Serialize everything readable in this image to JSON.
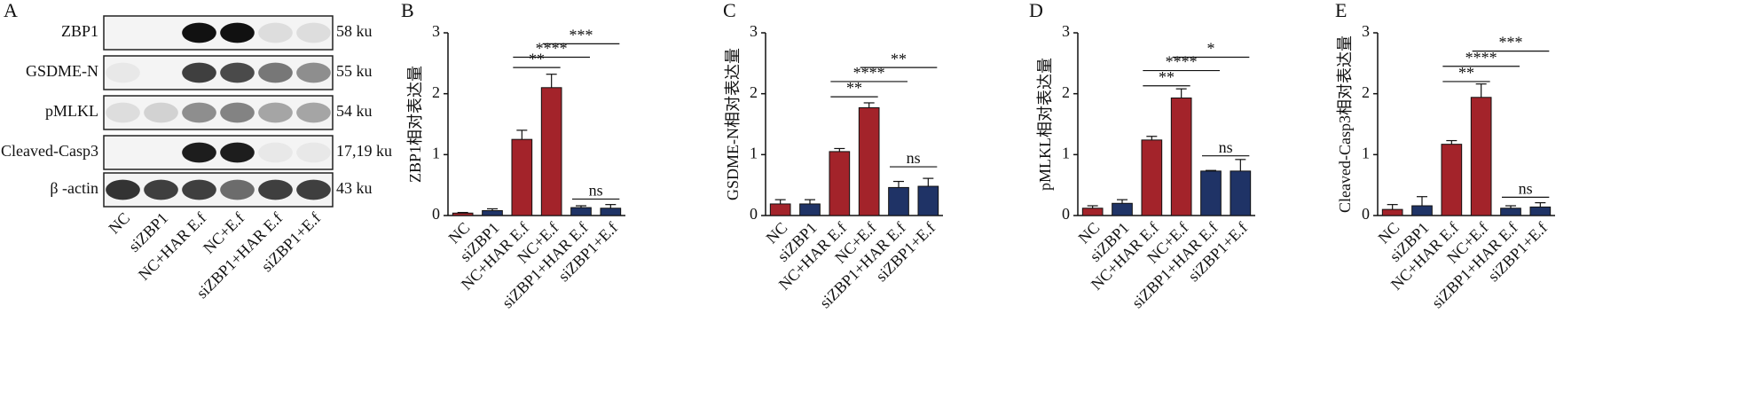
{
  "blot": {
    "panel": "A",
    "lanes": [
      "NC",
      "siZBP1",
      "NC+HAR E.f",
      "NC+E.f",
      "siZBP1+HAR E.f",
      "siZBP1+E.f"
    ],
    "rows": [
      {
        "name": "ZBP1",
        "size": "58 ku",
        "bands": [
          0,
          0,
          1,
          1,
          0.1,
          0.1
        ]
      },
      {
        "name": "GSDME-N",
        "size": "55 ku",
        "bands": [
          0.05,
          0,
          0.8,
          0.75,
          0.55,
          0.45
        ]
      },
      {
        "name": "pMLKL",
        "size": "54 ku",
        "bands": [
          0.1,
          0.15,
          0.45,
          0.5,
          0.35,
          0.35
        ]
      },
      {
        "name": "Cleaved-Casp3",
        "size": "17,19 ku",
        "bands": [
          0,
          0,
          0.95,
          0.95,
          0.05,
          0.05
        ]
      },
      {
        "name": "β -actin",
        "size": "43 ku",
        "bands": [
          0.85,
          0.8,
          0.8,
          0.6,
          0.8,
          0.8
        ]
      }
    ]
  },
  "chart_data": [
    {
      "type": "bar",
      "panel": "B",
      "y_label": "ZBP1相对表达量",
      "categories": [
        "NC",
        "siZBP1",
        "NC+HAR E.f",
        "NC+E.f",
        "siZBP1+HAR E.f",
        "siZBP1+E.f"
      ],
      "values": [
        0.04,
        0.08,
        1.25,
        2.1,
        0.13,
        0.12
      ],
      "errors": [
        0.01,
        0.03,
        0.15,
        0.22,
        0.03,
        0.06
      ],
      "colors": [
        "#a3232a",
        "#1f3366",
        "#a3232a",
        "#a3232a",
        "#1f3366",
        "#1f3366"
      ],
      "ylim": [
        0,
        3
      ],
      "yticks": [
        0,
        1,
        2,
        3
      ],
      "brackets": [
        {
          "pair": [
            2,
            3
          ],
          "y": 2.43,
          "label": "**"
        },
        {
          "pair": [
            2,
            4
          ],
          "y": 2.6,
          "label": "****"
        },
        {
          "pair": [
            3,
            5
          ],
          "y": 2.82,
          "label": "***"
        },
        {
          "pair": [
            4,
            5
          ],
          "y": 0.27,
          "label": "ns"
        }
      ]
    },
    {
      "type": "bar",
      "panel": "C",
      "y_label": "GSDME-N相对表达量",
      "categories": [
        "NC",
        "siZBP1",
        "NC+HAR E.f",
        "NC+E.f",
        "siZBP1+HAR E.f",
        "siZBP1+E.f"
      ],
      "values": [
        0.19,
        0.19,
        1.05,
        1.77,
        0.46,
        0.48
      ],
      "errors": [
        0.07,
        0.07,
        0.05,
        0.08,
        0.1,
        0.13
      ],
      "colors": [
        "#a3232a",
        "#1f3366",
        "#a3232a",
        "#a3232a",
        "#1f3366",
        "#1f3366"
      ],
      "ylim": [
        0,
        3
      ],
      "yticks": [
        0,
        1,
        2,
        3
      ],
      "brackets": [
        {
          "pair": [
            2,
            3
          ],
          "y": 1.95,
          "label": "**"
        },
        {
          "pair": [
            2,
            4
          ],
          "y": 2.2,
          "label": "****"
        },
        {
          "pair": [
            3,
            5
          ],
          "y": 2.43,
          "label": "**"
        },
        {
          "pair": [
            4,
            5
          ],
          "y": 0.8,
          "label": "ns"
        }
      ]
    },
    {
      "type": "bar",
      "panel": "D",
      "y_label": "pMLKL相对表达量",
      "categories": [
        "NC",
        "siZBP1",
        "NC+HAR E.f",
        "NC+E.f",
        "siZBP1+HAR E.f",
        "siZBP1+E.f"
      ],
      "values": [
        0.12,
        0.2,
        1.24,
        1.93,
        0.73,
        0.73
      ],
      "errors": [
        0.04,
        0.06,
        0.06,
        0.15,
        0.01,
        0.19
      ],
      "colors": [
        "#a3232a",
        "#1f3366",
        "#a3232a",
        "#a3232a",
        "#1f3366",
        "#1f3366"
      ],
      "ylim": [
        0,
        3
      ],
      "yticks": [
        0,
        1,
        2,
        3
      ],
      "brackets": [
        {
          "pair": [
            2,
            3
          ],
          "y": 2.13,
          "label": "**"
        },
        {
          "pair": [
            2,
            4
          ],
          "y": 2.38,
          "label": "****"
        },
        {
          "pair": [
            3,
            5
          ],
          "y": 2.6,
          "label": "*"
        },
        {
          "pair": [
            4,
            5
          ],
          "y": 0.98,
          "label": "ns"
        }
      ]
    },
    {
      "type": "bar",
      "panel": "E",
      "y_label": "Cleaved-Casp3相对表达量",
      "categories": [
        "NC",
        "siZBP1",
        "NC+HAR E.f",
        "NC+E.f",
        "siZBP1+HAR E.f",
        "siZBP1+E.f"
      ],
      "values": [
        0.1,
        0.16,
        1.17,
        1.94,
        0.12,
        0.14
      ],
      "errors": [
        0.08,
        0.15,
        0.06,
        0.22,
        0.04,
        0.07
      ],
      "colors": [
        "#a3232a",
        "#1f3366",
        "#a3232a",
        "#a3232a",
        "#1f3366",
        "#1f3366"
      ],
      "ylim": [
        0,
        3
      ],
      "yticks": [
        0,
        1,
        2,
        3
      ],
      "brackets": [
        {
          "pair": [
            2,
            3
          ],
          "y": 2.2,
          "label": "**"
        },
        {
          "pair": [
            2,
            4
          ],
          "y": 2.45,
          "label": "****"
        },
        {
          "pair": [
            3,
            5
          ],
          "y": 2.7,
          "label": "***"
        },
        {
          "pair": [
            4,
            5
          ],
          "y": 0.3,
          "label": "ns"
        }
      ]
    }
  ]
}
